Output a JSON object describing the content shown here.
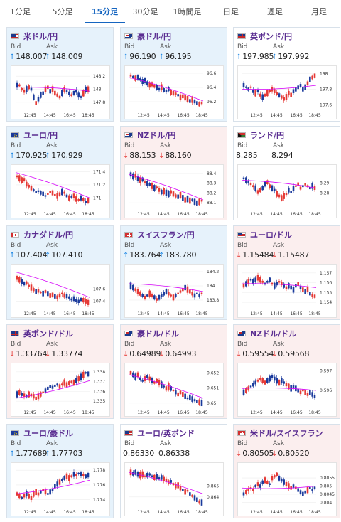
{
  "tabs": [
    {
      "label": "1分足",
      "active": false
    },
    {
      "label": "5分足",
      "active": false
    },
    {
      "label": "15分足",
      "active": true
    },
    {
      "label": "30分足",
      "active": false
    },
    {
      "label": "1時間足",
      "active": false
    },
    {
      "label": "日足",
      "active": false
    },
    {
      "label": "週足",
      "active": false
    },
    {
      "label": "月足",
      "active": false
    }
  ],
  "labels": {
    "bid": "Bid",
    "ask": "Ask"
  },
  "x_ticks": [
    "12:45",
    "14:45",
    "16:45",
    "18:45"
  ],
  "colors": {
    "accent": "#1565c0",
    "title": "#5a2d91",
    "up_bg": "#e6f2fb",
    "down_bg": "#fbeeee",
    "candle_up": "#e53935",
    "candle_down": "#1a3a9c",
    "ma": "#d500f9"
  },
  "pairs": [
    {
      "name": "米ドル/円",
      "flag": "us",
      "trend": "up",
      "bid": "148.007",
      "ask": "148.009",
      "bid_dir": "up",
      "ask_dir": "up",
      "chart_data": {
        "type": "candlestick",
        "ylim": [
          147.7,
          148.3
        ],
        "yticks": [
          "148.2",
          "148",
          "147.8"
        ],
        "ytick_values": [
          148.2,
          148.0,
          147.8
        ],
        "shape": [
          0.6,
          0.6,
          0.5,
          0.45,
          0.5,
          0.55,
          0.5,
          0.3,
          0.15,
          0.25,
          0.35,
          0.4,
          0.5,
          0.55,
          0.45,
          0.5,
          0.4,
          0.35,
          0.3,
          0.4,
          0.5,
          0.45,
          0.4,
          0.35,
          0.4,
          0.45,
          0.35,
          0.3,
          0.4,
          0.5,
          0.5
        ],
        "ma": [
          0.55,
          0.45
        ]
      }
    },
    {
      "name": "豪ドル/円",
      "flag": "au",
      "trend": "up",
      "bid": "96.190",
      "ask": "96.195",
      "bid_dir": "up",
      "ask_dir": "up",
      "chart_data": {
        "type": "candlestick",
        "ylim": [
          96.1,
          96.65
        ],
        "yticks": [
          "96.6",
          "96.4",
          "96.2"
        ],
        "ytick_values": [
          96.6,
          96.4,
          96.2
        ],
        "shape": [
          0.85,
          0.82,
          0.78,
          0.8,
          0.75,
          0.7,
          0.72,
          0.65,
          0.6,
          0.62,
          0.58,
          0.55,
          0.5,
          0.55,
          0.48,
          0.45,
          0.5,
          0.42,
          0.4,
          0.38,
          0.35,
          0.3,
          0.32,
          0.28,
          0.25,
          0.2,
          0.22,
          0.18,
          0.15,
          0.12,
          0.15
        ],
        "ma": [
          0.8,
          0.2
        ]
      }
    },
    {
      "name": "英ポンド/円",
      "flag": "gb",
      "trend": "flat",
      "bid": "197.985",
      "ask": "197.992",
      "bid_dir": "up",
      "ask_dir": "up",
      "chart_data": {
        "type": "candlestick",
        "ylim": [
          197.55,
          198.05
        ],
        "yticks": [
          "198",
          "197.8",
          "197.6"
        ],
        "ytick_values": [
          198.0,
          197.8,
          197.6
        ],
        "shape": [
          0.6,
          0.55,
          0.5,
          0.55,
          0.45,
          0.4,
          0.45,
          0.35,
          0.3,
          0.35,
          0.4,
          0.45,
          0.5,
          0.45,
          0.4,
          0.35,
          0.3,
          0.25,
          0.3,
          0.4,
          0.35,
          0.45,
          0.5,
          0.55,
          0.6,
          0.5,
          0.55,
          0.65,
          0.75,
          0.8,
          0.85
        ],
        "ma": [
          0.5,
          0.6
        ]
      }
    },
    {
      "name": "ユーロ/円",
      "flag": "eu",
      "trend": "up",
      "bid": "170.925",
      "ask": "170.929",
      "bid_dir": "up",
      "ask_dir": "up",
      "chart_data": {
        "type": "candlestick",
        "ylim": [
          170.85,
          171.45
        ],
        "yticks": [
          "171.4",
          "171.2",
          "171"
        ],
        "ytick_values": [
          171.4,
          171.2,
          171.0
        ],
        "shape": [
          0.8,
          0.75,
          0.7,
          0.72,
          0.6,
          0.55,
          0.5,
          0.45,
          0.4,
          0.42,
          0.38,
          0.35,
          0.3,
          0.35,
          0.4,
          0.38,
          0.32,
          0.3,
          0.35,
          0.4,
          0.38,
          0.3,
          0.25,
          0.28,
          0.3,
          0.22,
          0.2,
          0.25,
          0.2,
          0.15,
          0.18
        ],
        "ma": [
          0.9,
          0.25
        ]
      }
    },
    {
      "name": "NZドル/円",
      "flag": "nz",
      "trend": "down",
      "bid": "88.153",
      "ask": "88.160",
      "bid_dir": "down",
      "ask_dir": "down",
      "chart_data": {
        "type": "candlestick",
        "ylim": [
          88.05,
          88.45
        ],
        "yticks": [
          "88.4",
          "88.3",
          "88.2",
          "88.1"
        ],
        "ytick_values": [
          88.4,
          88.3,
          88.2,
          88.1
        ],
        "shape": [
          0.85,
          0.8,
          0.82,
          0.75,
          0.7,
          0.72,
          0.65,
          0.62,
          0.6,
          0.55,
          0.5,
          0.52,
          0.45,
          0.4,
          0.42,
          0.38,
          0.35,
          0.4,
          0.35,
          0.3,
          0.28,
          0.32,
          0.25,
          0.2,
          0.22,
          0.18,
          0.2,
          0.15,
          0.12,
          0.15,
          0.18
        ],
        "ma": [
          0.85,
          0.2
        ]
      }
    },
    {
      "name": "ランド/円",
      "flag": "za",
      "trend": "flat",
      "bid": "8.285",
      "ask": "8.294",
      "bid_dir": "none",
      "ask_dir": "none",
      "chart_data": {
        "type": "candlestick",
        "ylim": [
          8.265,
          8.305
        ],
        "yticks": [
          "8.29",
          "8.28"
        ],
        "ytick_values": [
          8.29,
          8.28
        ],
        "shape": [
          0.75,
          0.7,
          0.65,
          0.6,
          0.55,
          0.5,
          0.4,
          0.45,
          0.5,
          0.6,
          0.65,
          0.55,
          0.5,
          0.45,
          0.35,
          0.3,
          0.25,
          0.3,
          0.35,
          0.45,
          0.4,
          0.5,
          0.55,
          0.6,
          0.5,
          0.55,
          0.6,
          0.55,
          0.5,
          0.55,
          0.5
        ],
        "ma": [
          0.7,
          0.5
        ]
      }
    },
    {
      "name": "カナダドル/円",
      "flag": "ca",
      "trend": "up",
      "bid": "107.404",
      "ask": "107.410",
      "bid_dir": "up",
      "ask_dir": "up",
      "chart_data": {
        "type": "candlestick",
        "ylim": [
          107.3,
          107.95
        ],
        "yticks": [
          "107.6",
          "107.4"
        ],
        "ytick_values": [
          107.6,
          107.4
        ],
        "shape": [
          0.75,
          0.7,
          0.65,
          0.6,
          0.62,
          0.55,
          0.5,
          0.45,
          0.4,
          0.42,
          0.38,
          0.35,
          0.4,
          0.35,
          0.3,
          0.32,
          0.28,
          0.25,
          0.3,
          0.35,
          0.3,
          0.28,
          0.25,
          0.2,
          0.22,
          0.18,
          0.15,
          0.2,
          0.18,
          0.15,
          0.12
        ],
        "ma": [
          0.9,
          0.25
        ]
      }
    },
    {
      "name": "スイスフラン/円",
      "flag": "ch",
      "trend": "up",
      "bid": "183.764",
      "ask": "183.780",
      "bid_dir": "up",
      "ask_dir": "up",
      "chart_data": {
        "type": "candlestick",
        "ylim": [
          183.7,
          184.25
        ],
        "yticks": [
          "184.2",
          "184",
          "183.8"
        ],
        "ytick_values": [
          184.2,
          184.0,
          183.8
        ],
        "shape": [
          0.55,
          0.5,
          0.45,
          0.4,
          0.35,
          0.3,
          0.25,
          0.3,
          0.35,
          0.3,
          0.25,
          0.2,
          0.25,
          0.3,
          0.35,
          0.4,
          0.35,
          0.3,
          0.25,
          0.3,
          0.35,
          0.4,
          0.45,
          0.5,
          0.45,
          0.4,
          0.35,
          0.3,
          0.35,
          0.3,
          0.35
        ],
        "ma": [
          0.6,
          0.4
        ]
      }
    },
    {
      "name": "ユーロ/ドル",
      "flag": "us",
      "trend": "down",
      "bid": "1.15484",
      "ask": "1.15487",
      "bid_dir": "down",
      "ask_dir": "down",
      "chart_data": {
        "type": "candlestick",
        "ylim": [
          1.1535,
          1.1575
        ],
        "yticks": [
          "1.157",
          "1.156",
          "1.155",
          "1.154"
        ],
        "ytick_values": [
          1.157,
          1.156,
          1.155,
          1.154
        ],
        "shape": [
          0.55,
          0.6,
          0.65,
          0.7,
          0.65,
          0.7,
          0.75,
          0.7,
          0.65,
          0.6,
          0.65,
          0.7,
          0.6,
          0.55,
          0.6,
          0.65,
          0.6,
          0.55,
          0.5,
          0.55,
          0.5,
          0.45,
          0.55,
          0.6,
          0.5,
          0.45,
          0.4,
          0.45,
          0.35,
          0.3,
          0.28
        ],
        "ma": [
          0.6,
          0.5
        ]
      }
    },
    {
      "name": "英ポンド/ドル",
      "flag": "gb",
      "trend": "down",
      "bid": "1.33764",
      "ask": "1.33774",
      "bid_dir": "down",
      "ask_dir": "down",
      "chart_data": {
        "type": "candlestick",
        "ylim": [
          1.3345,
          1.3385
        ],
        "yticks": [
          "1.338",
          "1.337",
          "1.336",
          "1.335"
        ],
        "ytick_values": [
          1.338,
          1.337,
          1.336,
          1.335
        ],
        "shape": [
          0.3,
          0.35,
          0.3,
          0.28,
          0.25,
          0.3,
          0.28,
          0.25,
          0.2,
          0.25,
          0.3,
          0.35,
          0.4,
          0.45,
          0.5,
          0.48,
          0.52,
          0.55,
          0.5,
          0.55,
          0.6,
          0.55,
          0.58,
          0.62,
          0.6,
          0.65,
          0.7,
          0.75,
          0.8,
          0.85,
          0.82
        ],
        "ma": [
          0.2,
          0.65
        ]
      }
    },
    {
      "name": "豪ドル/ドル",
      "flag": "au",
      "trend": "down",
      "bid": "0.64989",
      "ask": "0.64993",
      "bid_dir": "down",
      "ask_dir": "down",
      "chart_data": {
        "type": "candlestick",
        "ylim": [
          0.6498,
          0.6524
        ],
        "yticks": [
          "0.652",
          "0.651",
          "0.65"
        ],
        "ytick_values": [
          0.652,
          0.651,
          0.65
        ],
        "shape": [
          0.85,
          0.8,
          0.75,
          0.8,
          0.7,
          0.65,
          0.7,
          0.75,
          0.7,
          0.65,
          0.6,
          0.65,
          0.6,
          0.55,
          0.5,
          0.45,
          0.5,
          0.45,
          0.4,
          0.35,
          0.3,
          0.35,
          0.3,
          0.25,
          0.2,
          0.22,
          0.18,
          0.15,
          0.12,
          0.1,
          0.08
        ],
        "ma": [
          0.8,
          0.2
        ]
      }
    },
    {
      "name": "NZドル/ドル",
      "flag": "au",
      "trend": "down",
      "bid": "0.59554",
      "ask": "0.59568",
      "bid_dir": "down",
      "ask_dir": "down",
      "chart_data": {
        "type": "candlestick",
        "ylim": [
          0.5952,
          0.5972
        ],
        "yticks": [
          "0.597",
          "0.596"
        ],
        "ytick_values": [
          0.597,
          0.596
        ],
        "shape": [
          0.35,
          0.4,
          0.45,
          0.5,
          0.55,
          0.6,
          0.65,
          0.7,
          0.65,
          0.6,
          0.65,
          0.7,
          0.75,
          0.7,
          0.65,
          0.6,
          0.65,
          0.6,
          0.55,
          0.5,
          0.45,
          0.5,
          0.45,
          0.4,
          0.35,
          0.4,
          0.35,
          0.3,
          0.35,
          0.3,
          0.25
        ],
        "ma": [
          0.45,
          0.4
        ]
      }
    },
    {
      "name": "ユーロ/豪ドル",
      "flag": "eu",
      "trend": "up",
      "bid": "1.77689",
      "ask": "1.77703",
      "bid_dir": "up",
      "ask_dir": "up",
      "chart_data": {
        "type": "candlestick",
        "ylim": [
          1.7732,
          1.7785
        ],
        "yticks": [
          "1.778",
          "1.776",
          "1.774"
        ],
        "ytick_values": [
          1.778,
          1.776,
          1.774
        ],
        "shape": [
          0.3,
          0.25,
          0.2,
          0.25,
          0.3,
          0.25,
          0.2,
          0.3,
          0.35,
          0.3,
          0.35,
          0.4,
          0.35,
          0.3,
          0.35,
          0.4,
          0.5,
          0.55,
          0.6,
          0.65,
          0.7,
          0.75,
          0.7,
          0.75,
          0.8,
          0.78,
          0.82,
          0.8,
          0.78,
          0.75,
          0.78
        ],
        "ma": [
          0.3,
          0.65
        ]
      }
    },
    {
      "name": "ユーロ/英ポンド",
      "flag": "us",
      "trend": "flat",
      "bid": "0.86330",
      "ask": "0.86338",
      "bid_dir": "none",
      "ask_dir": "none",
      "chart_data": {
        "type": "candlestick",
        "ylim": [
          0.8632,
          0.8668
        ],
        "yticks": [
          "0.865",
          "0.864"
        ],
        "ytick_values": [
          0.865,
          0.864
        ],
        "shape": [
          0.85,
          0.82,
          0.85,
          0.8,
          0.78,
          0.8,
          0.75,
          0.78,
          0.8,
          0.75,
          0.72,
          0.75,
          0.7,
          0.72,
          0.68,
          0.65,
          0.6,
          0.62,
          0.55,
          0.5,
          0.52,
          0.45,
          0.4,
          0.35,
          0.38,
          0.3,
          0.25,
          0.2,
          0.15,
          0.1,
          0.08
        ],
        "ma": [
          0.85,
          0.3
        ]
      }
    },
    {
      "name": "米ドル/スイスフラン",
      "flag": "ch",
      "trend": "down",
      "bid": "0.80505",
      "ask": "0.80520",
      "bid_dir": "down",
      "ask_dir": "down",
      "chart_data": {
        "type": "candlestick",
        "ylim": [
          0.8038,
          0.8062
        ],
        "yticks": [
          "0.8055",
          "0.805",
          "0.8045",
          "0.804"
        ],
        "ytick_values": [
          0.8055,
          0.805,
          0.8045,
          0.804
        ],
        "shape": [
          0.3,
          0.35,
          0.4,
          0.45,
          0.4,
          0.5,
          0.55,
          0.5,
          0.6,
          0.65,
          0.6,
          0.55,
          0.7,
          0.75,
          0.8,
          0.7,
          0.65,
          0.6,
          0.55,
          0.5,
          0.45,
          0.5,
          0.45,
          0.4,
          0.35,
          0.3,
          0.35,
          0.4,
          0.45,
          0.4,
          0.45
        ],
        "ma": [
          0.45,
          0.5
        ]
      }
    }
  ]
}
